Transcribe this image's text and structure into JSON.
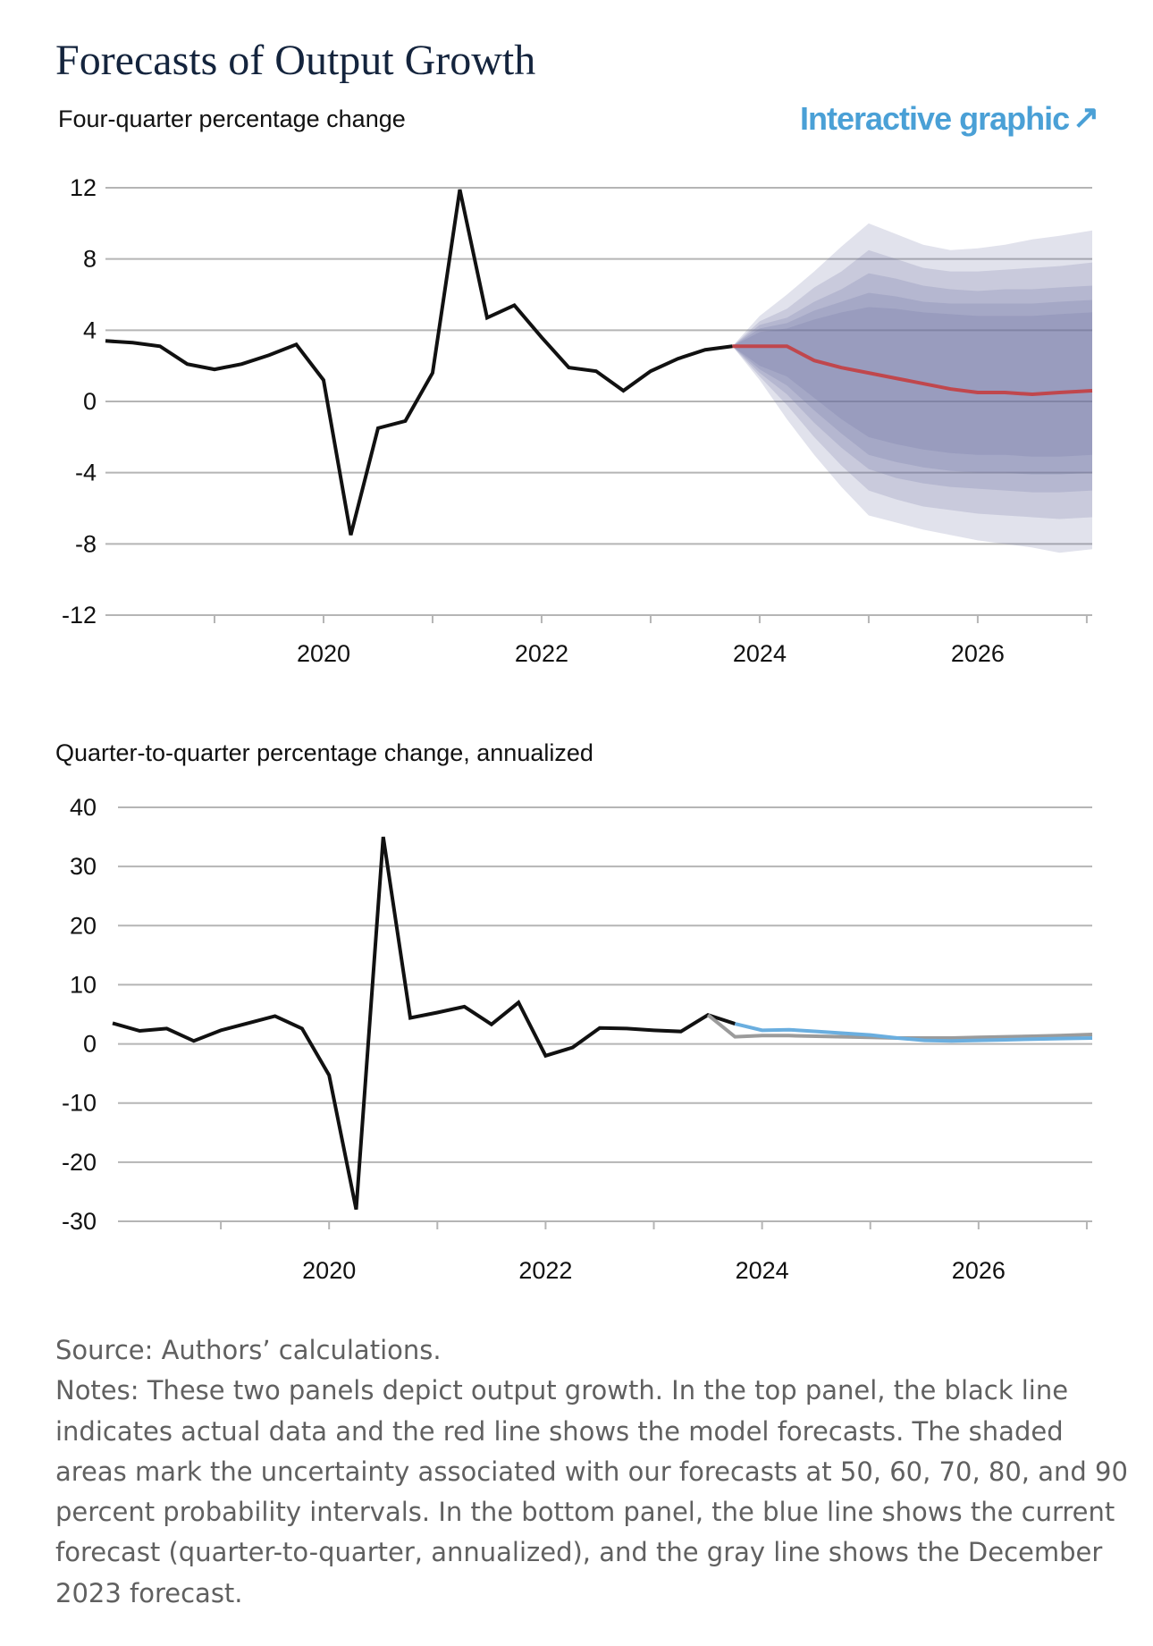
{
  "title": "Forecasts of Output Growth",
  "link": {
    "label": "Interactive graphic",
    "arrow": "↗"
  },
  "colors": {
    "actual": "#111111",
    "forecast_top": "#c0474d",
    "current_forecast": "#6aaedf",
    "dec_forecast": "#9b9b9b",
    "band": "#6a6f9f",
    "grid": "#b5b5b5"
  },
  "chart_data": [
    {
      "id": "top",
      "type": "line",
      "ylabel": "Four-quarter percentage change",
      "ylim": [
        -12,
        12
      ],
      "yticks": [
        12,
        8,
        4,
        0,
        -4,
        -8,
        -12
      ],
      "ytick_labels": [
        "12",
        "8",
        "4",
        "0",
        "-4",
        "-8",
        "-12"
      ],
      "xlim": [
        2018.0,
        2027.05
      ],
      "xticks_minor": [
        2019,
        2020,
        2021,
        2022,
        2023,
        2024,
        2025,
        2026,
        2027
      ],
      "xtick_labels": [
        2020,
        2022,
        2024,
        2026
      ],
      "series": [
        {
          "name": "Actual",
          "color": "#111111",
          "x": [
            2018.0,
            2018.25,
            2018.5,
            2018.75,
            2019.0,
            2019.25,
            2019.5,
            2019.75,
            2020.0,
            2020.25,
            2020.5,
            2020.75,
            2021.0,
            2021.25,
            2021.5,
            2021.75,
            2022.0,
            2022.25,
            2022.5,
            2022.75,
            2023.0,
            2023.25,
            2023.5,
            2023.75
          ],
          "y": [
            3.4,
            3.3,
            3.1,
            2.1,
            1.8,
            2.1,
            2.6,
            3.2,
            1.2,
            -7.5,
            -1.5,
            -1.1,
            1.6,
            11.9,
            4.7,
            5.4,
            3.6,
            1.9,
            1.7,
            0.6,
            1.7,
            2.4,
            2.9,
            3.1
          ]
        },
        {
          "name": "Forecast",
          "color": "#c0474d",
          "x": [
            2023.75,
            2024.0,
            2024.25,
            2024.5,
            2024.75,
            2025.0,
            2025.25,
            2025.5,
            2025.75,
            2026.0,
            2026.25,
            2026.5,
            2026.75,
            2027.05
          ],
          "y": [
            3.1,
            3.1,
            3.1,
            2.3,
            1.9,
            1.6,
            1.3,
            1.0,
            0.7,
            0.5,
            0.5,
            0.4,
            0.5,
            0.6
          ]
        }
      ],
      "bands": {
        "x": [
          2023.75,
          2024.0,
          2024.25,
          2024.5,
          2024.75,
          2025.0,
          2025.25,
          2025.5,
          2025.75,
          2026.0,
          2026.25,
          2026.5,
          2026.75,
          2027.05
        ],
        "intervals": [
          {
            "prob": 90,
            "upper": [
              3.1,
              4.8,
              6.0,
              7.3,
              8.7,
              10.0,
              9.4,
              8.8,
              8.5,
              8.6,
              8.8,
              9.1,
              9.3,
              9.6
            ],
            "lower": [
              3.1,
              1.2,
              -1.0,
              -3.0,
              -4.8,
              -6.4,
              -6.8,
              -7.2,
              -7.5,
              -7.8,
              -8.0,
              -8.2,
              -8.5,
              -8.3
            ]
          },
          {
            "prob": 80,
            "upper": [
              3.1,
              4.5,
              5.2,
              6.4,
              7.3,
              8.5,
              8.0,
              7.5,
              7.3,
              7.3,
              7.4,
              7.5,
              7.6,
              7.8
            ],
            "lower": [
              3.1,
              1.4,
              -0.2,
              -2.0,
              -3.6,
              -5.0,
              -5.5,
              -5.9,
              -6.1,
              -6.3,
              -6.4,
              -6.5,
              -6.6,
              -6.5
            ]
          },
          {
            "prob": 70,
            "upper": [
              3.1,
              4.3,
              4.7,
              5.6,
              6.3,
              7.2,
              6.9,
              6.5,
              6.3,
              6.2,
              6.3,
              6.3,
              6.4,
              6.5
            ],
            "lower": [
              3.1,
              1.6,
              0.4,
              -1.2,
              -2.6,
              -3.8,
              -4.3,
              -4.6,
              -4.8,
              -4.9,
              -5.0,
              -5.1,
              -5.1,
              -5.0
            ]
          },
          {
            "prob": 60,
            "upper": [
              3.1,
              4.1,
              4.4,
              5.1,
              5.6,
              6.1,
              5.9,
              5.6,
              5.5,
              5.5,
              5.5,
              5.5,
              5.6,
              5.7
            ],
            "lower": [
              3.1,
              1.8,
              0.9,
              -0.5,
              -1.8,
              -3.0,
              -3.4,
              -3.7,
              -3.9,
              -4.0,
              -4.0,
              -4.1,
              -4.1,
              -4.0
            ]
          },
          {
            "prob": 50,
            "upper": [
              3.1,
              3.9,
              4.1,
              4.6,
              5.0,
              5.3,
              5.2,
              5.0,
              4.9,
              4.8,
              4.8,
              4.8,
              4.9,
              5.0
            ],
            "lower": [
              3.1,
              2.0,
              1.4,
              0.2,
              -1.0,
              -2.0,
              -2.4,
              -2.7,
              -2.9,
              -3.0,
              -3.0,
              -3.1,
              -3.1,
              -3.0
            ]
          }
        ]
      }
    },
    {
      "id": "bottom",
      "type": "line",
      "ylabel": "Quarter-to-quarter percentage change, annualized",
      "ylim": [
        -30,
        40
      ],
      "yticks": [
        40,
        30,
        20,
        10,
        0,
        -10,
        -20,
        -30
      ],
      "ytick_labels": [
        "40",
        "30",
        "20",
        "10",
        "0",
        "-10",
        "-20",
        "-30"
      ],
      "xlim": [
        2018.0,
        2027.05
      ],
      "xticks_minor": [
        2019,
        2020,
        2021,
        2022,
        2023,
        2024,
        2025,
        2026,
        2027
      ],
      "xtick_labels": [
        2020,
        2022,
        2024,
        2026
      ],
      "series": [
        {
          "name": "Actual",
          "color": "#111111",
          "x": [
            2018.0,
            2018.25,
            2018.5,
            2018.75,
            2019.0,
            2019.25,
            2019.5,
            2019.75,
            2020.0,
            2020.25,
            2020.5,
            2020.75,
            2021.0,
            2021.25,
            2021.5,
            2021.75,
            2022.0,
            2022.25,
            2022.5,
            2022.75,
            2023.0,
            2023.25,
            2023.5,
            2023.75
          ],
          "y": [
            3.5,
            2.2,
            2.6,
            0.5,
            2.3,
            3.5,
            4.7,
            2.6,
            -5.3,
            -28.0,
            35.0,
            4.4,
            5.3,
            6.3,
            3.3,
            7.0,
            -2.0,
            -0.6,
            2.7,
            2.6,
            2.3,
            2.1,
            4.9,
            3.4
          ]
        },
        {
          "name": "December 2023 forecast",
          "color": "#9b9b9b",
          "x": [
            2023.5,
            2023.75,
            2024.0,
            2024.25,
            2024.5,
            2024.75,
            2025.0,
            2025.25,
            2025.5,
            2025.75,
            2026.0,
            2026.25,
            2026.5,
            2026.75,
            2027.05
          ],
          "y": [
            4.9,
            1.2,
            1.4,
            1.4,
            1.3,
            1.2,
            1.1,
            1.0,
            1.0,
            1.0,
            1.1,
            1.2,
            1.3,
            1.4,
            1.6
          ]
        },
        {
          "name": "Current forecast",
          "color": "#6aaedf",
          "x": [
            2023.75,
            2024.0,
            2024.25,
            2024.5,
            2024.75,
            2025.0,
            2025.25,
            2025.5,
            2025.75,
            2026.0,
            2026.25,
            2026.5,
            2026.75,
            2027.05
          ],
          "y": [
            3.4,
            2.3,
            2.4,
            2.1,
            1.8,
            1.5,
            1.0,
            0.6,
            0.5,
            0.6,
            0.7,
            0.8,
            0.9,
            1.0
          ]
        }
      ]
    }
  ],
  "notes": {
    "source": "Source: Authors’ calculations.",
    "lines": [
      "Notes: These two panels depict output growth. In the top panel, the black line",
      "indicates actual data and the red line shows the model forecasts. The shaded",
      "areas mark the uncertainty associated with our forecasts at 50, 60, 70, 80, and 90",
      "percent probability intervals. In the bottom panel, the blue line shows the current",
      "forecast (quarter-to-quarter, annualized), and the gray line shows the December",
      "2023 forecast."
    ]
  }
}
